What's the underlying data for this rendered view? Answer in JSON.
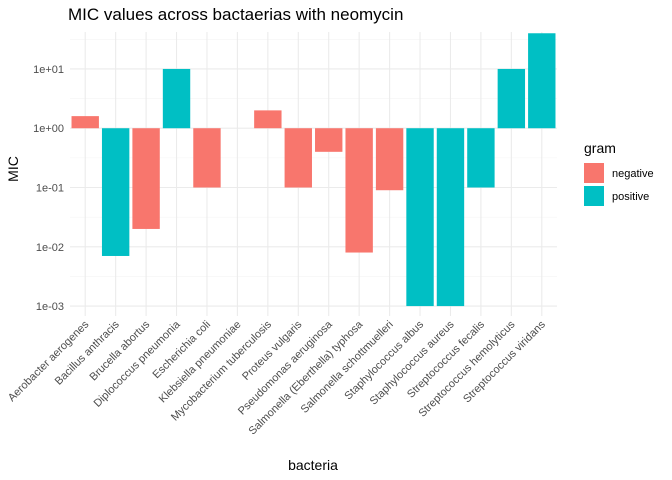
{
  "chart_data": {
    "type": "bar",
    "title": "MIC values across bactaerias with neomycin",
    "xlabel": "bacteria",
    "ylabel": "MIC",
    "y_scale": "log10",
    "ylim": [
      0.00068,
      42
    ],
    "bar_base": 1,
    "y_ticks": [
      0.001,
      0.01,
      0.1,
      1,
      10
    ],
    "y_tick_labels": [
      "1e-03",
      "1e-02",
      "1e-01",
      "1e+00",
      "1e+01"
    ],
    "grid": true,
    "categories": [
      "Aerobacter aerogenes",
      "Bacillus anthracis",
      "Brucella abortus",
      "Diplococcus pneumonia",
      "Escherichia coli",
      "Klebsiella pneumoniae",
      "Mycobacterium tuberculosis",
      "Proteus vulgaris",
      "Pseudomonas aeruginosa",
      "Salmonella (Eberthella) typhosa",
      "Salmonella schottmuelleri",
      "Staphylococcus albus",
      "Staphylococcus aureus",
      "Streptococcus fecalis",
      "Streptococcus hemolyticus",
      "Streptococcus viridans"
    ],
    "values": [
      1.6,
      0.007,
      0.02,
      10,
      0.1,
      1,
      2,
      0.1,
      0.4,
      0.008,
      0.09,
      0.001,
      0.001,
      0.1,
      10,
      40
    ],
    "groups": [
      "negative",
      "positive",
      "negative",
      "positive",
      "negative",
      "negative",
      "negative",
      "negative",
      "negative",
      "negative",
      "negative",
      "positive",
      "positive",
      "positive",
      "positive",
      "positive"
    ],
    "legend": {
      "title": "gram",
      "position": "right",
      "items": [
        {
          "label": "negative",
          "color": "#F8766D"
        },
        {
          "label": "positive",
          "color": "#00BFC4"
        }
      ]
    }
  }
}
